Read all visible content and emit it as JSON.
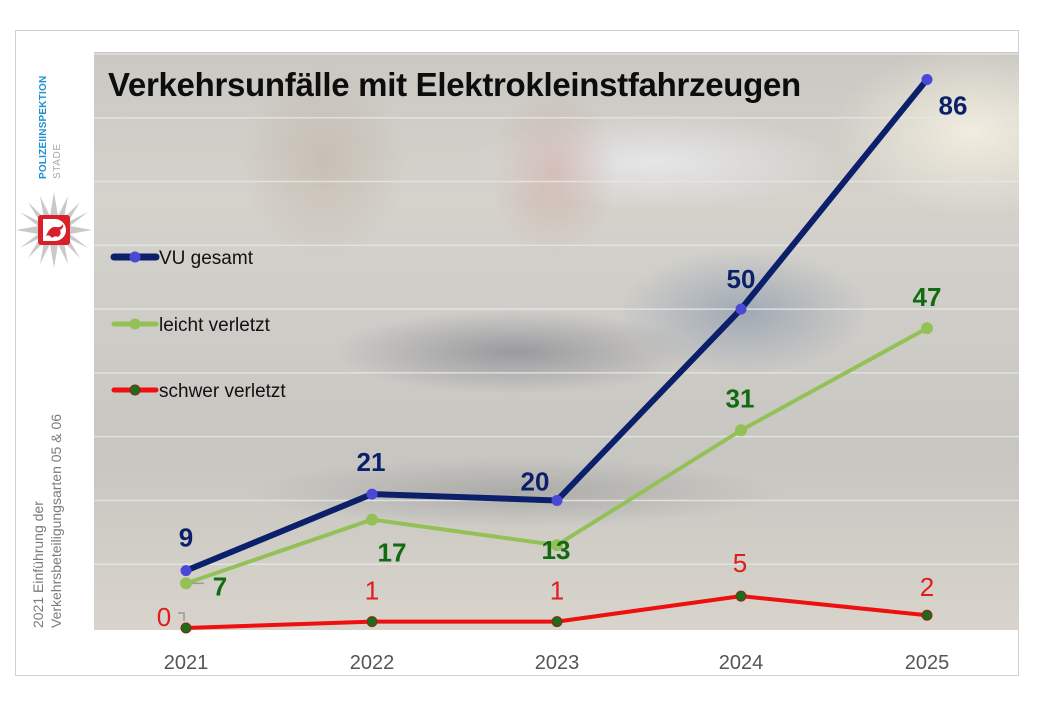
{
  "logo": {
    "line1": "POLIZEIINSPEKTION",
    "line2": "STADE",
    "icon": "police-star-emblem-icon"
  },
  "side_note": {
    "line1": "2021 Einführung der",
    "line2": "Verkehrsbeteiligungsarten 05 & 06"
  },
  "colors": {
    "vu_gesamt": "#0b1f6b",
    "vu_gesamt_marker": "#4c48d6",
    "vu_gesamt_label": "#0b1f6b",
    "leicht_verletzt": "#93c157",
    "leicht_verletzt_label": "#126b12",
    "schwer_verletzt": "#ee1010",
    "schwer_verletzt_marker": "#1e6b1e",
    "schwer_verletzt_label": "#e01c1c",
    "gridline": "#e6e6e6",
    "axis_tick_text": "#555555"
  },
  "chart_data": {
    "type": "line",
    "title": "Verkehrsunfälle mit Elektrokleinstfahrzeugen",
    "xlabel": "",
    "ylabel": "",
    "categories": [
      "2021",
      "2022",
      "2023",
      "2024",
      "2025"
    ],
    "ylim": [
      0,
      90
    ],
    "y_grid_step": 10,
    "grid": true,
    "y_tick_labels_visible": false,
    "legend_position": "left",
    "series": [
      {
        "name": "VU gesamt",
        "values": [
          9,
          21,
          20,
          50,
          86
        ]
      },
      {
        "name": "leicht verletzt",
        "values": [
          7,
          17,
          13,
          31,
          47
        ]
      },
      {
        "name": "schwer verletzt",
        "values": [
          0,
          1,
          1,
          5,
          2
        ]
      }
    ]
  }
}
